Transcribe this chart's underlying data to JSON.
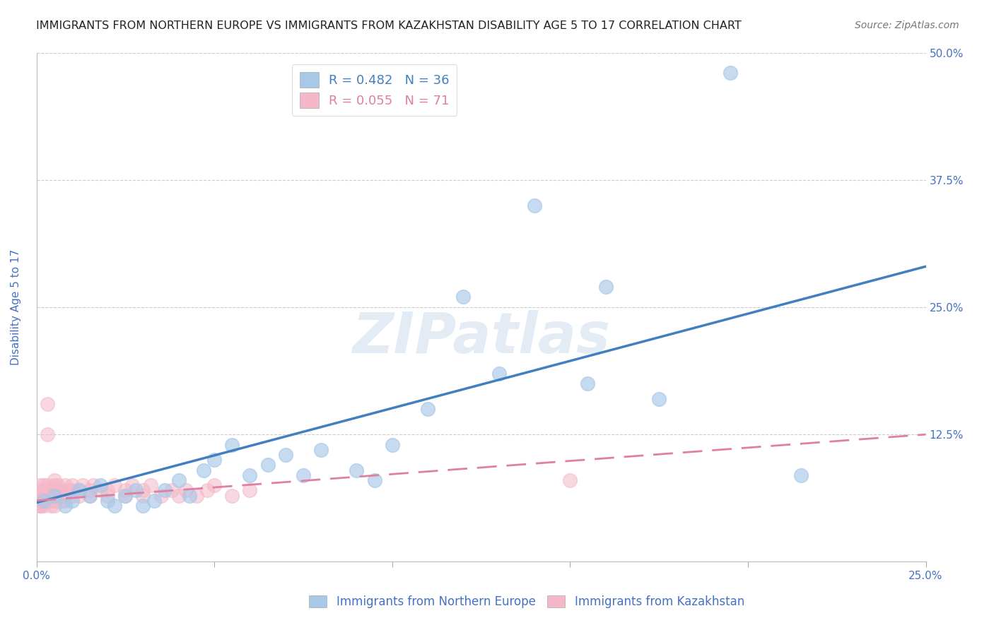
{
  "title": "IMMIGRANTS FROM NORTHERN EUROPE VS IMMIGRANTS FROM KAZAKHSTAN DISABILITY AGE 5 TO 17 CORRELATION CHART",
  "source": "Source: ZipAtlas.com",
  "ylabel": "Disability Age 5 to 17",
  "xlim": [
    0.0,
    0.25
  ],
  "ylim": [
    0.0,
    0.5
  ],
  "xticks": [
    0.0,
    0.05,
    0.1,
    0.15,
    0.2,
    0.25
  ],
  "yticks": [
    0.0,
    0.125,
    0.25,
    0.375,
    0.5
  ],
  "xticklabels": [
    "0.0%",
    "",
    "",
    "",
    "",
    "25.0%"
  ],
  "yticklabels_right": [
    "",
    "12.5%",
    "25.0%",
    "37.5%",
    "50.0%"
  ],
  "blue_color": "#a8c8e8",
  "pink_color": "#f4b8c8",
  "blue_line_color": "#4080c0",
  "pink_line_color": "#e080a0",
  "legend_blue_label": "R = 0.482   N = 36",
  "legend_pink_label": "R = 0.055   N = 71",
  "watermark": "ZIPatlas",
  "blue_scatter_x": [
    0.002,
    0.005,
    0.008,
    0.01,
    0.012,
    0.015,
    0.018,
    0.02,
    0.022,
    0.025,
    0.028,
    0.03,
    0.033,
    0.036,
    0.04,
    0.043,
    0.047,
    0.05,
    0.055,
    0.06,
    0.065,
    0.07,
    0.075,
    0.08,
    0.09,
    0.095,
    0.1,
    0.11,
    0.12,
    0.13,
    0.14,
    0.155,
    0.16,
    0.175,
    0.195,
    0.215
  ],
  "blue_scatter_y": [
    0.06,
    0.065,
    0.055,
    0.06,
    0.07,
    0.065,
    0.075,
    0.06,
    0.055,
    0.065,
    0.07,
    0.055,
    0.06,
    0.07,
    0.08,
    0.065,
    0.09,
    0.1,
    0.115,
    0.085,
    0.095,
    0.105,
    0.085,
    0.11,
    0.09,
    0.08,
    0.115,
    0.15,
    0.26,
    0.185,
    0.35,
    0.175,
    0.27,
    0.16,
    0.48,
    0.085
  ],
  "pink_scatter_x": [
    0.001,
    0.001,
    0.001,
    0.001,
    0.001,
    0.001,
    0.001,
    0.001,
    0.001,
    0.001,
    0.002,
    0.002,
    0.002,
    0.002,
    0.002,
    0.003,
    0.003,
    0.003,
    0.003,
    0.004,
    0.004,
    0.004,
    0.004,
    0.005,
    0.005,
    0.005,
    0.005,
    0.005,
    0.005,
    0.005,
    0.006,
    0.006,
    0.006,
    0.007,
    0.007,
    0.007,
    0.008,
    0.008,
    0.008,
    0.009,
    0.01,
    0.01,
    0.01,
    0.012,
    0.012,
    0.013,
    0.015,
    0.015,
    0.016,
    0.018,
    0.02,
    0.02,
    0.022,
    0.025,
    0.025,
    0.027,
    0.03,
    0.03,
    0.032,
    0.035,
    0.038,
    0.04,
    0.042,
    0.045,
    0.048,
    0.05,
    0.055,
    0.06,
    0.003,
    0.003,
    0.15
  ],
  "pink_scatter_y": [
    0.06,
    0.055,
    0.065,
    0.07,
    0.06,
    0.075,
    0.055,
    0.06,
    0.065,
    0.055,
    0.06,
    0.065,
    0.07,
    0.075,
    0.055,
    0.06,
    0.065,
    0.07,
    0.075,
    0.06,
    0.055,
    0.065,
    0.07,
    0.06,
    0.055,
    0.065,
    0.07,
    0.075,
    0.06,
    0.08,
    0.065,
    0.07,
    0.075,
    0.06,
    0.065,
    0.07,
    0.075,
    0.06,
    0.065,
    0.07,
    0.065,
    0.07,
    0.075,
    0.065,
    0.07,
    0.075,
    0.065,
    0.07,
    0.075,
    0.07,
    0.065,
    0.07,
    0.075,
    0.065,
    0.07,
    0.075,
    0.065,
    0.07,
    0.075,
    0.065,
    0.07,
    0.065,
    0.07,
    0.065,
    0.07,
    0.075,
    0.065,
    0.07,
    0.155,
    0.125,
    0.08
  ],
  "blue_trend_x": [
    0.0,
    0.25
  ],
  "blue_trend_y": [
    0.058,
    0.29
  ],
  "pink_trend_x": [
    0.0,
    0.25
  ],
  "pink_trend_y": [
    0.06,
    0.125
  ],
  "bottom_legend_blue": "Immigrants from Northern Europe",
  "bottom_legend_pink": "Immigrants from Kazakhstan",
  "axis_color": "#4472c4",
  "grid_color": "#cccccc",
  "title_fontsize": 11.5,
  "axis_label_fontsize": 11,
  "tick_fontsize": 11,
  "source_fontsize": 10
}
